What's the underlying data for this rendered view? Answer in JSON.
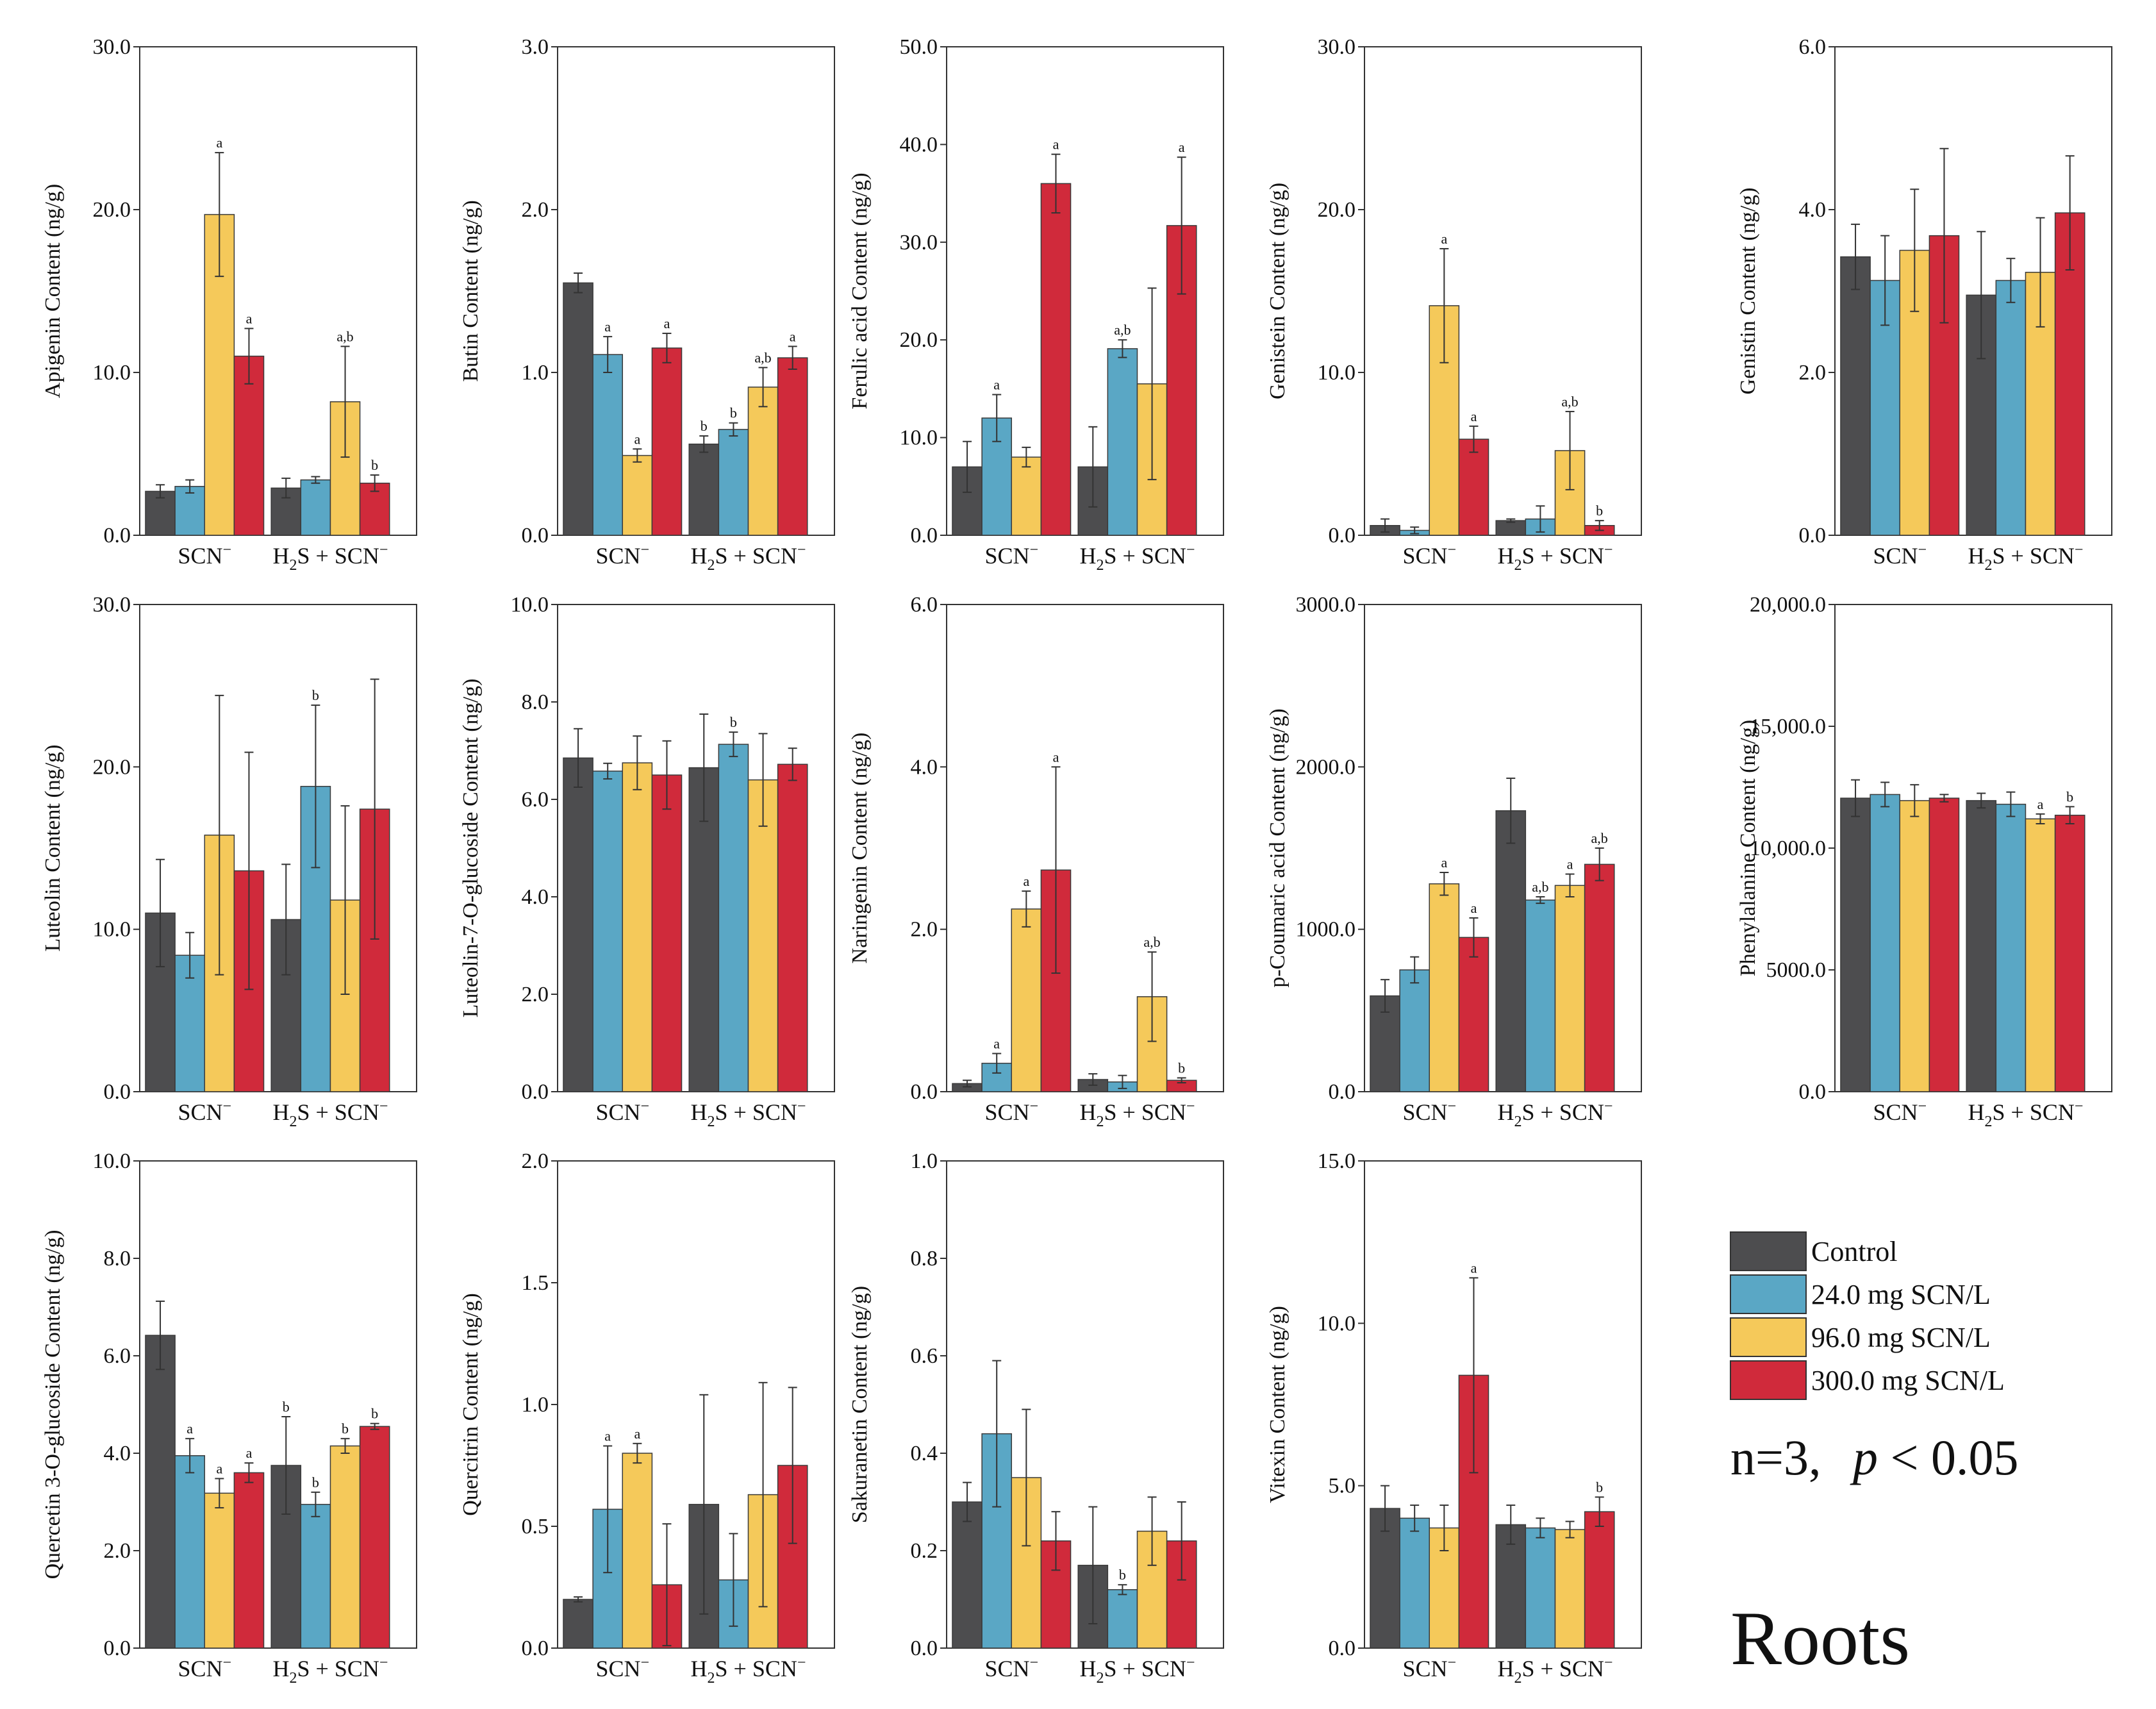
{
  "tissue": "Roots",
  "stats_note": {
    "prefix": "n=3,",
    "p": "p",
    "rest": " < 0.05"
  },
  "legend": [
    {
      "label": "Control",
      "color": "#4d4d4f"
    },
    {
      "label": "24.0 mg SCN/L",
      "color": "#5aa7c5"
    },
    {
      "label": "96.0 mg SCN/L",
      "color": "#f5c95a"
    },
    {
      "label": "300.0 mg SCN/L",
      "color": "#d02a3b"
    }
  ],
  "group_labels": [
    {
      "main": "SCN",
      "sup": "−"
    },
    {
      "parts": [
        "H",
        "2",
        "S + SCN",
        "−"
      ]
    }
  ],
  "chart_data": [
    {
      "type": "bar",
      "ylabel": "Apigenin Content (ng/g)",
      "ylim": [
        0,
        30
      ],
      "ticks": [
        0,
        10,
        20,
        30
      ],
      "tick_labels": [
        "0.0",
        "10.0",
        "20.0",
        "30.0"
      ],
      "series": [
        {
          "name": "Control",
          "values": [
            2.7,
            2.9
          ],
          "err": [
            0.4,
            0.6
          ],
          "sig": [
            "",
            ""
          ]
        },
        {
          "name": "24.0 mg SCN/L",
          "values": [
            3.0,
            3.4
          ],
          "err": [
            0.4,
            0.2
          ],
          "sig": [
            "",
            ""
          ]
        },
        {
          "name": "96.0 mg SCN/L",
          "values": [
            19.7,
            8.2
          ],
          "err": [
            3.8,
            3.4
          ],
          "sig": [
            "a",
            "a,b"
          ]
        },
        {
          "name": "300.0 mg SCN/L",
          "values": [
            11.0,
            3.2
          ],
          "err": [
            1.7,
            0.5
          ],
          "sig": [
            "a",
            "b"
          ]
        }
      ]
    },
    {
      "type": "bar",
      "ylabel": "Butin Content (ng/g)",
      "ylim": [
        0,
        3
      ],
      "ticks": [
        0,
        1,
        2,
        3
      ],
      "tick_labels": [
        "0.0",
        "1.0",
        "2.0",
        "3.0"
      ],
      "series": [
        {
          "name": "Control",
          "values": [
            1.55,
            0.56
          ],
          "err": [
            0.06,
            0.05
          ],
          "sig": [
            "",
            "b"
          ]
        },
        {
          "name": "24.0 mg SCN/L",
          "values": [
            1.11,
            0.65
          ],
          "err": [
            0.11,
            0.04
          ],
          "sig": [
            "a",
            "b"
          ]
        },
        {
          "name": "96.0 mg SCN/L",
          "values": [
            0.49,
            0.91
          ],
          "err": [
            0.04,
            0.12
          ],
          "sig": [
            "a",
            "a,b"
          ]
        },
        {
          "name": "300.0 mg SCN/L",
          "values": [
            1.15,
            1.09
          ],
          "err": [
            0.09,
            0.07
          ],
          "sig": [
            "a",
            "a"
          ]
        }
      ]
    },
    {
      "type": "bar",
      "ylabel": "Ferulic acid Content (ng/g)",
      "ylim": [
        0,
        50
      ],
      "ticks": [
        0,
        10,
        20,
        30,
        40,
        50
      ],
      "tick_labels": [
        "0.0",
        "10.0",
        "20.0",
        "30.0",
        "40.0",
        "50.0"
      ],
      "series": [
        {
          "name": "Control",
          "values": [
            7.0,
            7.0
          ],
          "err": [
            2.6,
            4.1
          ],
          "sig": [
            "",
            ""
          ]
        },
        {
          "name": "24.0 mg SCN/L",
          "values": [
            12.0,
            19.1
          ],
          "err": [
            2.4,
            0.9
          ],
          "sig": [
            "a",
            "a,b"
          ]
        },
        {
          "name": "96.0 mg SCN/L",
          "values": [
            8.0,
            15.5
          ],
          "err": [
            1.0,
            9.8
          ],
          "sig": [
            "",
            ""
          ]
        },
        {
          "name": "300.0 mg SCN/L",
          "values": [
            36.0,
            31.7
          ],
          "err": [
            3.0,
            7.0
          ],
          "sig": [
            "a",
            "a"
          ]
        }
      ]
    },
    {
      "type": "bar",
      "ylabel": "Genistein Content (ng/g)",
      "ylim": [
        0,
        30
      ],
      "ticks": [
        0,
        10,
        20,
        30
      ],
      "tick_labels": [
        "0.0",
        "10.0",
        "20.0",
        "30.0"
      ],
      "series": [
        {
          "name": "Control",
          "values": [
            0.6,
            0.9
          ],
          "err": [
            0.4,
            0.1
          ],
          "sig": [
            "",
            ""
          ]
        },
        {
          "name": "24.0 mg SCN/L",
          "values": [
            0.3,
            1.0
          ],
          "err": [
            0.2,
            0.8
          ],
          "sig": [
            "",
            ""
          ]
        },
        {
          "name": "96.0 mg SCN/L",
          "values": [
            14.1,
            5.2
          ],
          "err": [
            3.5,
            2.4
          ],
          "sig": [
            "a",
            "a,b"
          ]
        },
        {
          "name": "300.0 mg SCN/L",
          "values": [
            5.9,
            0.6
          ],
          "err": [
            0.8,
            0.3
          ],
          "sig": [
            "a",
            "b"
          ]
        }
      ]
    },
    {
      "type": "bar",
      "ylabel": "Genistin Content (ng/g)",
      "ylim": [
        0,
        6
      ],
      "ticks": [
        0,
        2,
        4,
        6
      ],
      "tick_labels": [
        "0.0",
        "2.0",
        "4.0",
        "6.0"
      ],
      "series": [
        {
          "name": "Control",
          "values": [
            3.42,
            2.95
          ],
          "err": [
            0.4,
            0.78
          ],
          "sig": [
            "",
            ""
          ]
        },
        {
          "name": "24.0 mg SCN/L",
          "values": [
            3.13,
            3.13
          ],
          "err": [
            0.55,
            0.27
          ],
          "sig": [
            "",
            ""
          ]
        },
        {
          "name": "96.0 mg SCN/L",
          "values": [
            3.5,
            3.23
          ],
          "err": [
            0.75,
            0.67
          ],
          "sig": [
            "",
            ""
          ]
        },
        {
          "name": "300.0 mg SCN/L",
          "values": [
            3.68,
            3.96
          ],
          "err": [
            1.07,
            0.7
          ],
          "sig": [
            "",
            ""
          ]
        }
      ]
    },
    {
      "type": "bar",
      "ylabel": "Luteolin Content (ng/g)",
      "ylim": [
        0,
        30
      ],
      "ticks": [
        0,
        10,
        20,
        30
      ],
      "tick_labels": [
        "0.0",
        "10.0",
        "20.0",
        "30.0"
      ],
      "series": [
        {
          "name": "Control",
          "values": [
            11.0,
            10.6
          ],
          "err": [
            3.3,
            3.4
          ],
          "sig": [
            "",
            ""
          ]
        },
        {
          "name": "24.0 mg SCN/L",
          "values": [
            8.4,
            18.8
          ],
          "err": [
            1.4,
            5.0
          ],
          "sig": [
            "",
            "b"
          ]
        },
        {
          "name": "96.0 mg SCN/L",
          "values": [
            15.8,
            11.8
          ],
          "err": [
            8.6,
            5.8
          ],
          "sig": [
            "",
            ""
          ]
        },
        {
          "name": "300.0 mg SCN/L",
          "values": [
            13.6,
            17.4
          ],
          "err": [
            7.3,
            8.0
          ],
          "sig": [
            "",
            ""
          ]
        }
      ]
    },
    {
      "type": "bar",
      "ylabel": "Luteolin-7-O-glucoside Content (ng/g)",
      "ylim": [
        0,
        10
      ],
      "ticks": [
        0,
        2,
        4,
        6,
        8,
        10
      ],
      "tick_labels": [
        "0.0",
        "2.0",
        "4.0",
        "6.0",
        "8.0",
        "10.0"
      ],
      "series": [
        {
          "name": "Control",
          "values": [
            6.85,
            6.65
          ],
          "err": [
            0.6,
            1.1
          ],
          "sig": [
            "",
            ""
          ]
        },
        {
          "name": "24.0 mg SCN/L",
          "values": [
            6.58,
            7.13
          ],
          "err": [
            0.16,
            0.25
          ],
          "sig": [
            "",
            "b"
          ]
        },
        {
          "name": "96.0 mg SCN/L",
          "values": [
            6.75,
            6.4
          ],
          "err": [
            0.55,
            0.95
          ],
          "sig": [
            "",
            ""
          ]
        },
        {
          "name": "300.0 mg SCN/L",
          "values": [
            6.5,
            6.72
          ],
          "err": [
            0.7,
            0.33
          ],
          "sig": [
            "",
            ""
          ]
        }
      ]
    },
    {
      "type": "bar",
      "ylabel": "Naringenin Content (ng/g)",
      "ylim": [
        0,
        6
      ],
      "ticks": [
        0,
        2,
        4,
        6
      ],
      "tick_labels": [
        "0.0",
        "2.0",
        "4.0",
        "6.0"
      ],
      "series": [
        {
          "name": "Control",
          "values": [
            0.1,
            0.15
          ],
          "err": [
            0.04,
            0.07
          ],
          "sig": [
            "",
            ""
          ]
        },
        {
          "name": "24.0 mg SCN/L",
          "values": [
            0.35,
            0.12
          ],
          "err": [
            0.12,
            0.08
          ],
          "sig": [
            "a",
            ""
          ]
        },
        {
          "name": "96.0 mg SCN/L",
          "values": [
            2.25,
            1.17
          ],
          "err": [
            0.22,
            0.55
          ],
          "sig": [
            "a",
            "a,b"
          ]
        },
        {
          "name": "300.0 mg SCN/L",
          "values": [
            2.73,
            0.14
          ],
          "err": [
            1.27,
            0.03
          ],
          "sig": [
            "a",
            "b"
          ]
        }
      ]
    },
    {
      "type": "bar",
      "ylabel": "p-Coumaric acid Content (ng/g)",
      "ylim": [
        0,
        3000
      ],
      "ticks": [
        0,
        1000,
        2000,
        3000
      ],
      "tick_labels": [
        "0.0",
        "1000.0",
        "2000.0",
        "3000.0"
      ],
      "series": [
        {
          "name": "Control",
          "values": [
            590,
            1730
          ],
          "err": [
            100,
            200
          ],
          "sig": [
            "",
            ""
          ]
        },
        {
          "name": "24.0 mg SCN/L",
          "values": [
            750,
            1180
          ],
          "err": [
            80,
            20
          ],
          "sig": [
            "",
            "a,b"
          ]
        },
        {
          "name": "96.0 mg SCN/L",
          "values": [
            1280,
            1270
          ],
          "err": [
            70,
            70
          ],
          "sig": [
            "a",
            "a"
          ]
        },
        {
          "name": "300.0 mg SCN/L",
          "values": [
            950,
            1400
          ],
          "err": [
            120,
            100
          ],
          "sig": [
            "a",
            "a,b"
          ]
        }
      ]
    },
    {
      "type": "bar",
      "ylabel": "Phenylalanine Content (ng/g)",
      "ylim": [
        0,
        20000
      ],
      "ticks": [
        0,
        5000,
        10000,
        15000,
        20000
      ],
      "tick_labels": [
        "0.0",
        "5000.0",
        "10,000.0",
        "15,000.0",
        "20,000.0"
      ],
      "series": [
        {
          "name": "Control",
          "values": [
            12050,
            11950
          ],
          "err": [
            750,
            300
          ],
          "sig": [
            "",
            ""
          ]
        },
        {
          "name": "24.0 mg SCN/L",
          "values": [
            12200,
            11800
          ],
          "err": [
            500,
            500
          ],
          "sig": [
            "",
            ""
          ]
        },
        {
          "name": "96.0 mg SCN/L",
          "values": [
            11950,
            11200
          ],
          "err": [
            650,
            200
          ],
          "sig": [
            "",
            "a"
          ]
        },
        {
          "name": "300.0 mg SCN/L",
          "values": [
            12050,
            11350
          ],
          "err": [
            150,
            350
          ],
          "sig": [
            "",
            "b"
          ]
        }
      ]
    },
    {
      "type": "bar",
      "ylabel": "Quercetin 3-O-glucoside Content (ng/g)",
      "ylim": [
        0,
        10
      ],
      "ticks": [
        0,
        2,
        4,
        6,
        8,
        10
      ],
      "tick_labels": [
        "0.0",
        "2.0",
        "4.0",
        "6.0",
        "8.0",
        "10.0"
      ],
      "series": [
        {
          "name": "Control",
          "values": [
            6.42,
            3.75
          ],
          "err": [
            0.7,
            1.0
          ],
          "sig": [
            "",
            "b"
          ]
        },
        {
          "name": "24.0 mg SCN/L",
          "values": [
            3.95,
            2.95
          ],
          "err": [
            0.35,
            0.25
          ],
          "sig": [
            "a",
            "b"
          ]
        },
        {
          "name": "96.0 mg SCN/L",
          "values": [
            3.18,
            4.15
          ],
          "err": [
            0.3,
            0.15
          ],
          "sig": [
            "a",
            "b"
          ]
        },
        {
          "name": "300.0 mg SCN/L",
          "values": [
            3.6,
            4.55
          ],
          "err": [
            0.2,
            0.06
          ],
          "sig": [
            "a",
            "b"
          ]
        }
      ]
    },
    {
      "type": "bar",
      "ylabel": "Quercitrin Content (ng/g)",
      "ylim": [
        0,
        2
      ],
      "ticks": [
        0,
        0.5,
        1,
        1.5,
        2
      ],
      "tick_labels": [
        "0.0",
        "0.5",
        "1.0",
        "1.5",
        "2.0"
      ],
      "series": [
        {
          "name": "Control",
          "values": [
            0.2,
            0.59
          ],
          "err": [
            0.01,
            0.45
          ],
          "sig": [
            "",
            ""
          ]
        },
        {
          "name": "24.0 mg SCN/L",
          "values": [
            0.57,
            0.28
          ],
          "err": [
            0.26,
            0.19
          ],
          "sig": [
            "a",
            ""
          ]
        },
        {
          "name": "96.0 mg SCN/L",
          "values": [
            0.8,
            0.63
          ],
          "err": [
            0.04,
            0.46
          ],
          "sig": [
            "a",
            ""
          ]
        },
        {
          "name": "300.0 mg SCN/L",
          "values": [
            0.26,
            0.75
          ],
          "err": [
            0.25,
            0.32
          ],
          "sig": [
            "",
            ""
          ]
        }
      ]
    },
    {
      "type": "bar",
      "ylabel": "Sakuranetin Content (ng/g)",
      "ylim": [
        0,
        1
      ],
      "ticks": [
        0,
        0.2,
        0.4,
        0.6,
        0.8,
        1
      ],
      "tick_labels": [
        "0.0",
        "0.2",
        "0.4",
        "0.6",
        "0.8",
        "1.0"
      ],
      "series": [
        {
          "name": "Control",
          "values": [
            0.3,
            0.17
          ],
          "err": [
            0.04,
            0.12
          ],
          "sig": [
            "",
            ""
          ]
        },
        {
          "name": "24.0 mg SCN/L",
          "values": [
            0.44,
            0.12
          ],
          "err": [
            0.15,
            0.01
          ],
          "sig": [
            "",
            "b"
          ]
        },
        {
          "name": "96.0 mg SCN/L",
          "values": [
            0.35,
            0.24
          ],
          "err": [
            0.14,
            0.07
          ],
          "sig": [
            "",
            ""
          ]
        },
        {
          "name": "300.0 mg SCN/L",
          "values": [
            0.22,
            0.22
          ],
          "err": [
            0.06,
            0.08
          ],
          "sig": [
            "",
            ""
          ]
        }
      ]
    },
    {
      "type": "bar",
      "ylabel": "Vitexin Content (ng/g)",
      "ylim": [
        0,
        15
      ],
      "ticks": [
        0,
        5,
        10,
        15
      ],
      "tick_labels": [
        "0.0",
        "5.0",
        "10.0",
        "15.0"
      ],
      "series": [
        {
          "name": "Control",
          "values": [
            4.3,
            3.8
          ],
          "err": [
            0.7,
            0.6
          ],
          "sig": [
            "",
            ""
          ]
        },
        {
          "name": "24.0 mg SCN/L",
          "values": [
            4.0,
            3.7
          ],
          "err": [
            0.4,
            0.3
          ],
          "sig": [
            "",
            ""
          ]
        },
        {
          "name": "96.0 mg SCN/L",
          "values": [
            3.7,
            3.65
          ],
          "err": [
            0.7,
            0.25
          ],
          "sig": [
            "",
            ""
          ]
        },
        {
          "name": "300.0 mg SCN/L",
          "values": [
            8.4,
            4.2
          ],
          "err": [
            3.0,
            0.45
          ],
          "sig": [
            "a",
            "b"
          ]
        }
      ]
    }
  ]
}
